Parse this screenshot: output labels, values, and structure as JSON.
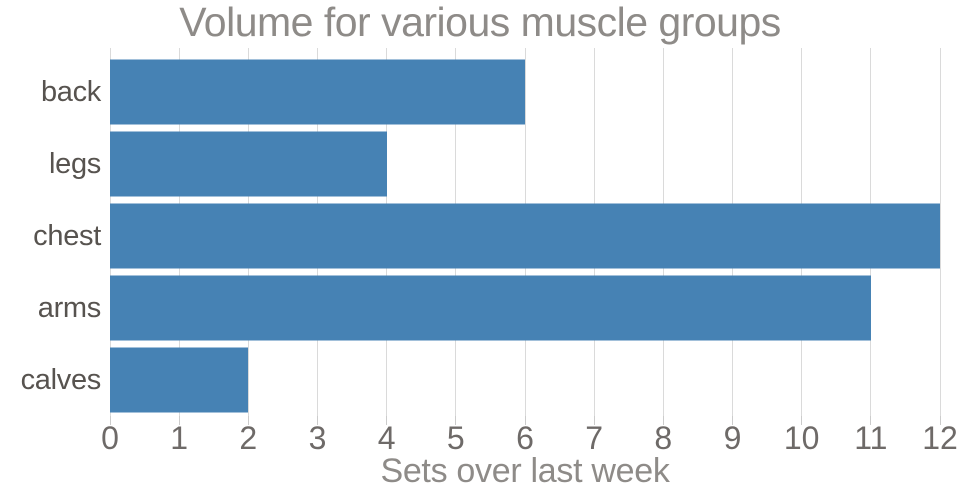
{
  "chart_data": {
    "type": "bar",
    "orientation": "horizontal",
    "title": "Volume for various muscle groups",
    "xlabel": "Sets over last week",
    "ylabel": "",
    "categories": [
      "back",
      "legs",
      "chest",
      "arms",
      "calves"
    ],
    "values": [
      6,
      4,
      12,
      11,
      2
    ],
    "xlim": [
      0,
      12
    ],
    "xticks": [
      0,
      1,
      2,
      3,
      4,
      5,
      6,
      7,
      8,
      9,
      10,
      11,
      12
    ],
    "grid": "vertical-only",
    "legend": "none",
    "background": "#ffffff",
    "colors": {
      "bar": "#4682B4",
      "gridline": "#DADADA",
      "tick_mark": "#CCCCCC",
      "tick_label_text": "#6E6A68",
      "category_label_text": "#57534F",
      "title_text": "#8E8B88"
    }
  }
}
